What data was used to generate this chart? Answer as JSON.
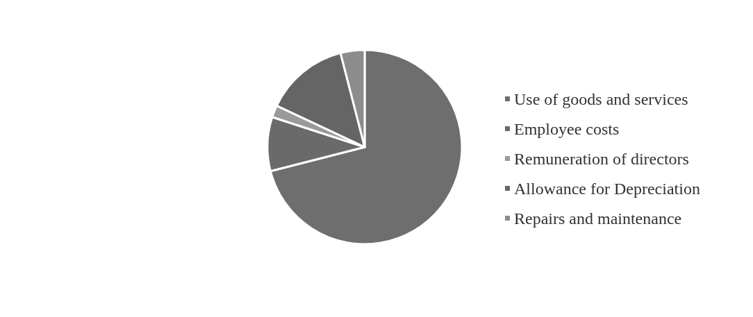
{
  "chart_data": {
    "type": "pie",
    "categories": [
      "Use of goods and services",
      "Employee costs",
      "Remuneration of directors",
      "Allowance for Depreciation",
      "Repairs and maintenance"
    ],
    "values": [
      71,
      9,
      2,
      14,
      4
    ],
    "colors": [
      "#6e6e6e",
      "#6a6a6a",
      "#9a9a9a",
      "#656565",
      "#8c8c8c"
    ],
    "legend": "right"
  }
}
